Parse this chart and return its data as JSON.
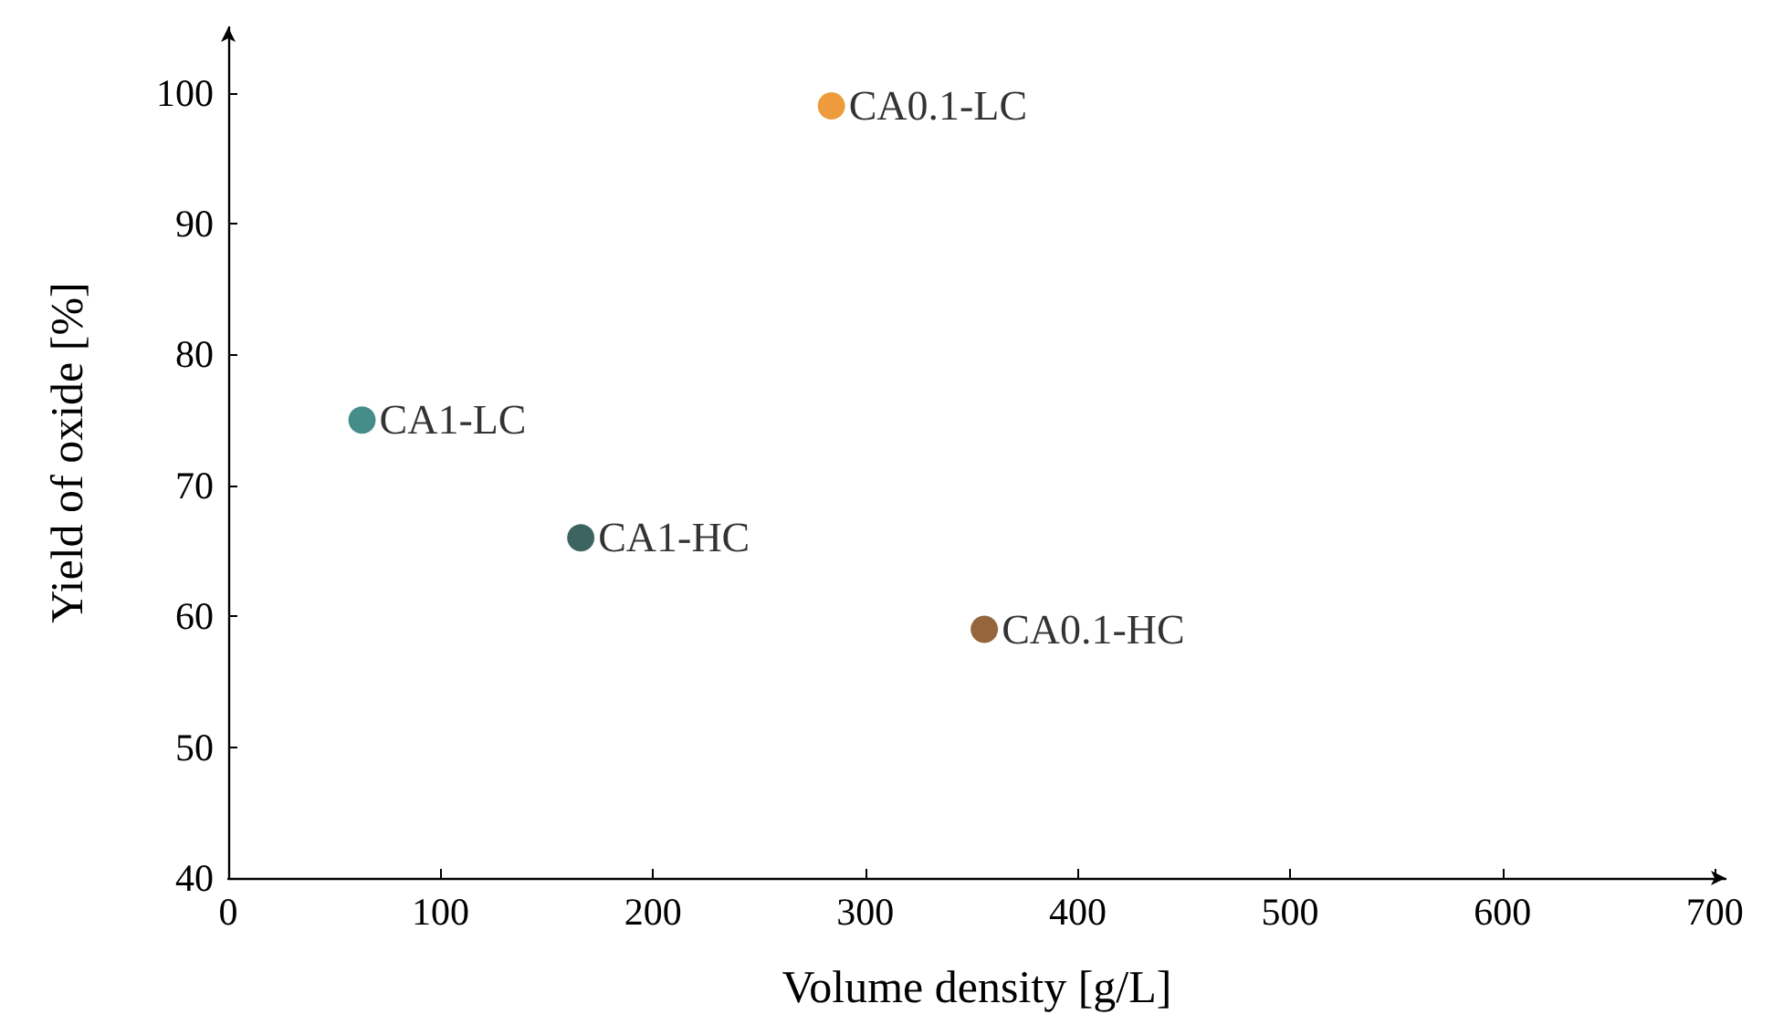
{
  "chart_data": {
    "type": "scatter",
    "xlabel": "Volume density [g/L]",
    "ylabel": "Yield of oxide [%]",
    "xlim": [
      0,
      705
    ],
    "xticks": [
      0,
      100,
      200,
      300,
      400,
      500,
      600,
      700
    ],
    "ylim": [
      40,
      105
    ],
    "yticks": [
      40,
      50,
      60,
      70,
      80,
      90,
      100
    ],
    "grid": false,
    "legend": false,
    "marker": "circle",
    "series": [
      {
        "name": "CA0.1-LC",
        "color": "#e8820c",
        "x": [
          284
        ],
        "values": [
          99
        ]
      },
      {
        "name": "CA1-LC",
        "color": "#16706c",
        "x": [
          63
        ],
        "values": [
          75
        ]
      },
      {
        "name": "CA1-HC",
        "color": "#0d3d3a",
        "x": [
          166
        ],
        "values": [
          66
        ]
      },
      {
        "name": "CA0.1-HC",
        "color": "#7a400a",
        "x": [
          356
        ],
        "values": [
          59
        ]
      }
    ]
  }
}
